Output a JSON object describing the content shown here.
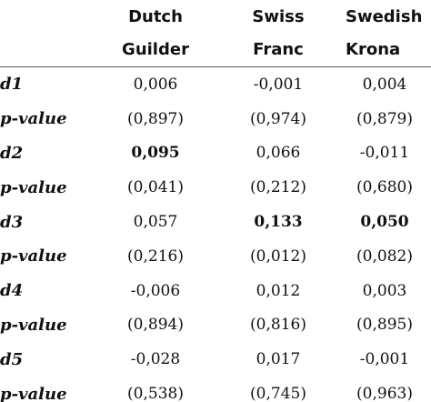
{
  "header": {
    "row1": [
      "",
      "Dutch",
      "Swiss",
      "Swedish"
    ],
    "row2": [
      "",
      "Guilder",
      "Franc",
      "Krona"
    ]
  },
  "rows": [
    {
      "label": "d1",
      "values": [
        "0,006",
        "-0,001",
        "0,004"
      ],
      "bold": [
        false,
        false,
        false
      ]
    },
    {
      "label": "p-value",
      "values": [
        "(0,897)",
        "(0,974)",
        "(0,879)"
      ],
      "bold": [
        false,
        false,
        false
      ]
    },
    {
      "label": "d2",
      "values": [
        "0,095",
        "0,066",
        "-0,011"
      ],
      "bold": [
        true,
        false,
        false
      ]
    },
    {
      "label": "p-value",
      "values": [
        "(0,041)",
        "(0,212)",
        "(0,680)"
      ],
      "bold": [
        false,
        false,
        false
      ]
    },
    {
      "label": "d3",
      "values": [
        "0,057",
        "0,133",
        "0,050"
      ],
      "bold": [
        false,
        true,
        true
      ]
    },
    {
      "label": "p-value",
      "values": [
        "(0,216)",
        "(0,012)",
        "(0,082)"
      ],
      "bold": [
        false,
        false,
        false
      ]
    },
    {
      "label": "d4",
      "values": [
        "-0,006",
        "0,012",
        "0,003"
      ],
      "bold": [
        false,
        false,
        false
      ]
    },
    {
      "label": "p-value",
      "values": [
        "(0,894)",
        "(0,816)",
        "(0,895)"
      ],
      "bold": [
        false,
        false,
        false
      ]
    },
    {
      "label": "d5",
      "values": [
        "-0,028",
        "0,017",
        "-0,001"
      ],
      "bold": [
        false,
        false,
        false
      ]
    },
    {
      "label": "p-value",
      "values": [
        "(0,538)",
        "(0,745)",
        "(0,963)"
      ],
      "bold": [
        false,
        false,
        false
      ]
    }
  ]
}
